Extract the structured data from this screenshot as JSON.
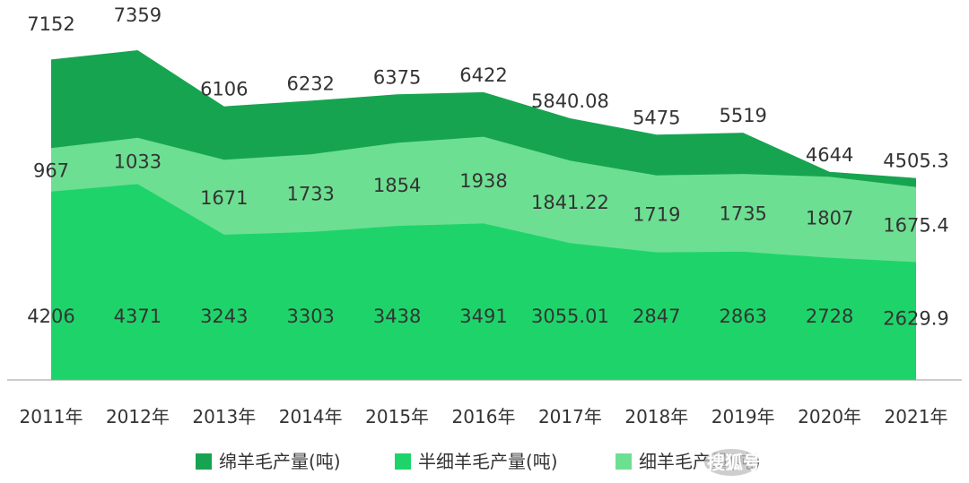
{
  "chart_data": {
    "type": "area",
    "stacked": true,
    "title": "",
    "xlabel": "",
    "ylabel": "",
    "categories": [
      "2011年",
      "2012年",
      "2013年",
      "2014年",
      "2015年",
      "2016年",
      "2017年",
      "2018年",
      "2019年",
      "2020年",
      "2021年"
    ],
    "series": [
      {
        "name": "半细羊毛产量(吨)",
        "color": "#1ed46a",
        "values": [
          4206,
          4371,
          3243,
          3303,
          3438,
          3491,
          3055.01,
          2847,
          2863,
          2728,
          2629.9
        ],
        "labels": [
          "4206",
          "4371",
          "3243",
          "3303",
          "3438",
          "3491",
          "3055.01",
          "2847",
          "2863",
          "2728",
          "2629.9"
        ]
      },
      {
        "name": "细羊毛产量(吨)",
        "color": "#6ddf92",
        "values": [
          967,
          1033,
          1671,
          1733,
          1854,
          1938,
          1841.22,
          1719,
          1735,
          1807,
          1675.4
        ],
        "labels": [
          "967",
          "1033",
          "1671",
          "1733",
          "1854",
          "1938",
          "1841.22",
          "1719",
          "1735",
          "1807",
          "1675.4"
        ]
      },
      {
        "name": "绵羊毛产量(吨)",
        "color": "#17a450",
        "values": [
          7152,
          7359,
          6106,
          6232,
          6375,
          6422,
          5840.08,
          5475,
          5519,
          4644,
          4505.3
        ],
        "labels": [
          "7152",
          "7359",
          "6106",
          "6232",
          "6375",
          "6422",
          "5840.08",
          "5475",
          "5519",
          "4644",
          "4505.3"
        ]
      }
    ],
    "legend": {
      "position": "bottom",
      "items": [
        {
          "label": "绵羊毛产量(吨)",
          "color": "#17a450"
        },
        {
          "label": "半细羊毛产量(吨)",
          "color": "#1ed46a"
        },
        {
          "label": "细羊毛产量(吨)",
          "color": "#6ddf92"
        }
      ]
    },
    "grid": false
  },
  "watermark": {
    "text": "搜狐号 @农小蜂数智云",
    "icon": "sohu-logo-icon"
  }
}
